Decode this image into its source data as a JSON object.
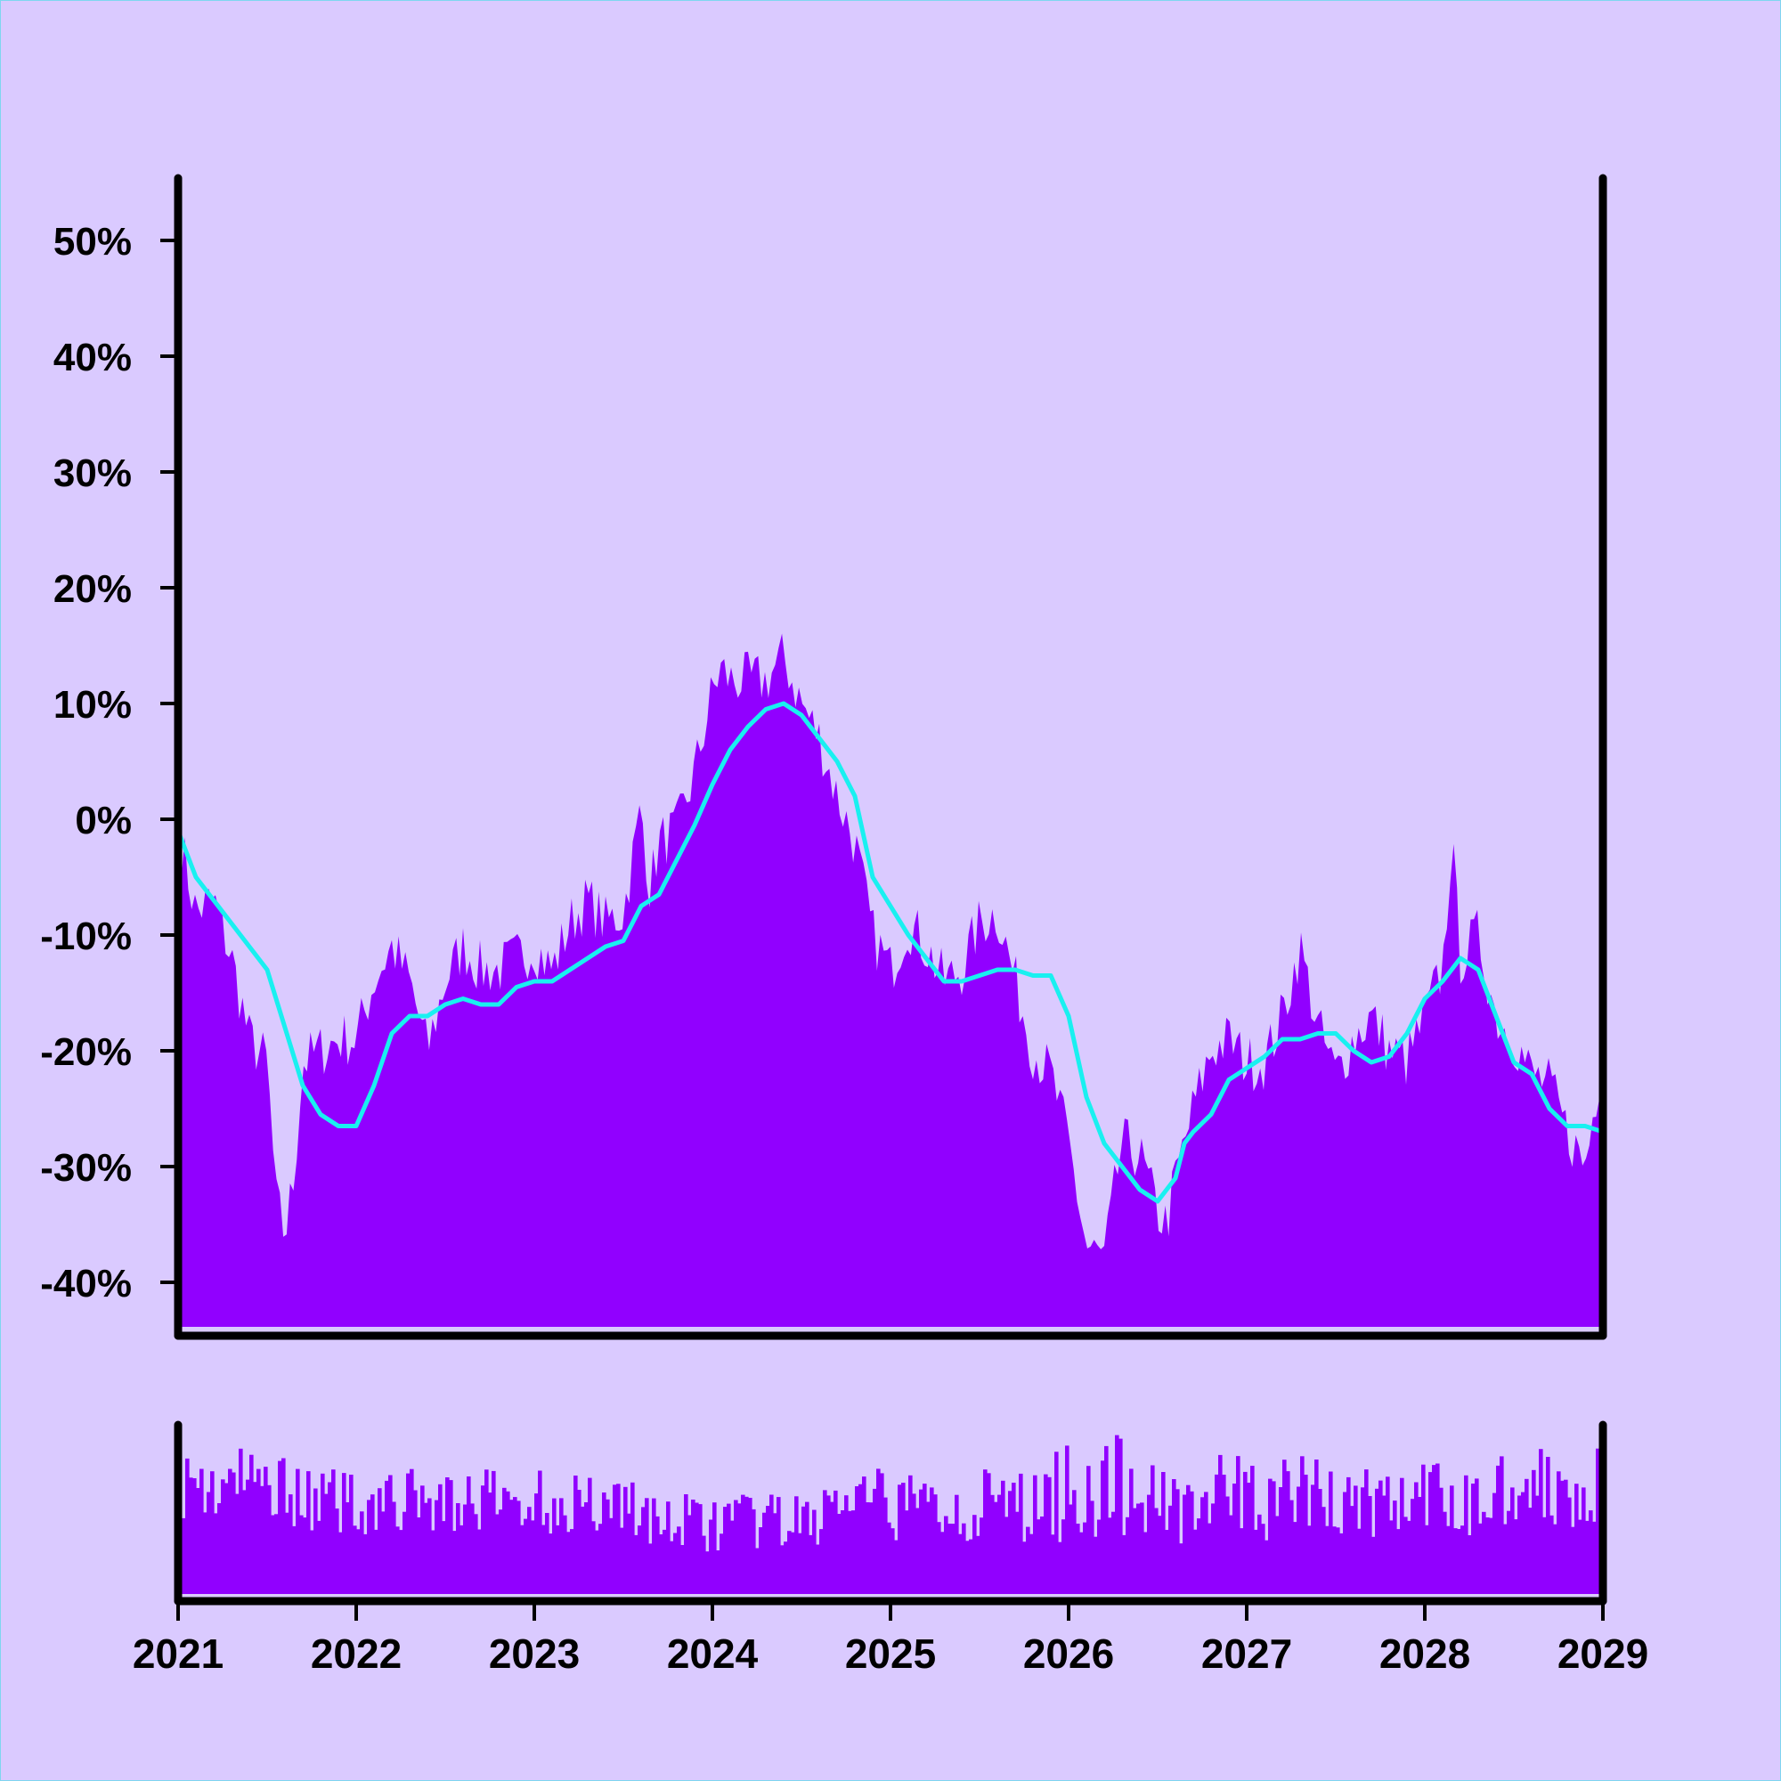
{
  "colors": {
    "background": "#dacaff",
    "area": "#9100ff",
    "trend": "#19f0f0",
    "axis": "#000000"
  },
  "chart_data": [
    {
      "type": "area",
      "title": "",
      "xlabel": "",
      "ylabel": "",
      "xlim": [
        2021.0,
        2029.0
      ],
      "ylim": [
        -44,
        55
      ],
      "y_ticks": [
        "50%",
        "40%",
        "30%",
        "20%",
        "10%",
        "0%",
        "-10%",
        "-20%",
        "-30%",
        "-40%"
      ],
      "y_tick_values": [
        50,
        40,
        30,
        20,
        10,
        0,
        -10,
        -20,
        -30,
        -40
      ],
      "grid": false,
      "legend": "none",
      "series": [
        {
          "style": "filled area",
          "x": [
            2021.0,
            2021.1,
            2021.2,
            2021.3,
            2021.4,
            2021.5,
            2021.55,
            2021.6,
            2021.65,
            2021.7,
            2021.8,
            2021.9,
            2022.0,
            2022.1,
            2022.2,
            2022.3,
            2022.4,
            2022.5,
            2022.6,
            2022.7,
            2022.8,
            2022.9,
            2023.0,
            2023.1,
            2023.2,
            2023.3,
            2023.4,
            2023.5,
            2023.6,
            2023.65,
            2023.7,
            2023.8,
            2023.9,
            2024.0,
            2024.05,
            2024.1,
            2024.2,
            2024.3,
            2024.4,
            2024.5,
            2024.6,
            2024.7,
            2024.8,
            2024.9,
            2025.0,
            2025.1,
            2025.2,
            2025.3,
            2025.4,
            2025.5,
            2025.6,
            2025.7,
            2025.8,
            2025.9,
            2026.0,
            2026.1,
            2026.2,
            2026.25,
            2026.3,
            2026.4,
            2026.5,
            2026.55,
            2026.6,
            2026.7,
            2026.8,
            2026.9,
            2027.0,
            2027.1,
            2027.2,
            2027.3,
            2027.4,
            2027.5,
            2027.6,
            2027.7,
            2027.8,
            2027.9,
            2028.0,
            2028.1,
            2028.15,
            2028.2,
            2028.3,
            2028.4,
            2028.5,
            2028.6,
            2028.7,
            2028.8,
            2028.9,
            2029.0
          ],
          "y": [
            -1,
            -8,
            -7,
            -12,
            -19,
            -21,
            -33,
            -36,
            -31,
            -21,
            -20,
            -19,
            -19,
            -14,
            -11,
            -14,
            -20,
            -14,
            -11,
            -13,
            -13,
            -12,
            -11,
            -13,
            -9,
            -7,
            -9,
            -8,
            1,
            -6,
            -2,
            -1,
            4,
            11,
            13,
            12,
            12,
            12,
            14,
            10,
            7,
            2,
            -2,
            -10,
            -13,
            -9,
            -11,
            -14,
            -13,
            -9,
            -8,
            -14,
            -20,
            -22,
            -28,
            -37,
            -38,
            -33,
            -28,
            -29,
            -34,
            -35,
            -31,
            -25,
            -20,
            -19,
            -21,
            -21,
            -17,
            -11,
            -18,
            -22,
            -19,
            -17,
            -20,
            -21,
            -17,
            -13,
            -2,
            -12,
            -10,
            -17,
            -19,
            -22,
            -23,
            -27,
            -30,
            -20
          ]
        },
        {
          "style": "smoothed line",
          "x": [
            2021.0,
            2021.1,
            2021.2,
            2021.3,
            2021.4,
            2021.5,
            2021.6,
            2021.7,
            2021.8,
            2021.9,
            2022.0,
            2022.1,
            2022.2,
            2022.3,
            2022.4,
            2022.5,
            2022.6,
            2022.7,
            2022.8,
            2022.9,
            2023.0,
            2023.1,
            2023.2,
            2023.3,
            2023.4,
            2023.5,
            2023.6,
            2023.7,
            2023.8,
            2023.9,
            2024.0,
            2024.1,
            2024.2,
            2024.3,
            2024.4,
            2024.5,
            2024.6,
            2024.7,
            2024.8,
            2024.9,
            2025.0,
            2025.1,
            2025.2,
            2025.3,
            2025.4,
            2025.5,
            2025.6,
            2025.7,
            2025.8,
            2025.9,
            2026.0,
            2026.1,
            2026.2,
            2026.3,
            2026.4,
            2026.5,
            2026.6,
            2026.65,
            2026.7,
            2026.8,
            2026.9,
            2027.0,
            2027.1,
            2027.2,
            2027.3,
            2027.4,
            2027.5,
            2027.6,
            2027.7,
            2027.8,
            2027.9,
            2028.0,
            2028.1,
            2028.2,
            2028.3,
            2028.4,
            2028.5,
            2028.6,
            2028.7,
            2028.8,
            2028.9,
            2029.0
          ],
          "y": [
            -1,
            -5,
            -7,
            -9,
            -11,
            -13,
            -18,
            -23,
            -25.5,
            -26.5,
            -26.5,
            -23,
            -18.5,
            -17,
            -17,
            -16,
            -15.5,
            -16,
            -16,
            -14.5,
            -14,
            -14,
            -13,
            -12,
            -11,
            -10.5,
            -7.5,
            -6.5,
            -3.5,
            -0.5,
            3,
            6,
            8,
            9.5,
            10,
            9,
            7,
            5,
            2,
            -5,
            -7.5,
            -10,
            -12,
            -14,
            -14,
            -13.5,
            -13,
            -13,
            -13.5,
            -13.5,
            -17,
            -24,
            -28,
            -30,
            -32,
            -33,
            -31,
            -28,
            -27,
            -25.5,
            -22.5,
            -21.5,
            -20.5,
            -19,
            -19,
            -18.5,
            -18.5,
            -20,
            -21,
            -20.5,
            -18.5,
            -15.5,
            -14,
            -12,
            -13,
            -17,
            -21,
            -22,
            -25,
            -26.5,
            -26.5,
            -27
          ]
        }
      ]
    },
    {
      "type": "bar",
      "title": "",
      "xlabel": "",
      "ylabel": "",
      "xlim": [
        2021.0,
        2029.0
      ],
      "x_ticks": [
        "2021",
        "2022",
        "2023",
        "2024",
        "2025",
        "2026",
        "2027",
        "2028",
        "2029"
      ],
      "x_tick_values": [
        2021,
        2022,
        2023,
        2024,
        2025,
        2026,
        2027,
        2028,
        2029
      ],
      "ylim": [
        0,
        1
      ],
      "grid": false,
      "legend": "none",
      "series": [
        {
          "style": "volume bars",
          "segments": [
            {
              "from": 2021.0,
              "to": 2021.7,
              "low": 0.4,
              "high": 0.9
            },
            {
              "from": 2021.7,
              "to": 2023.6,
              "low": 0.35,
              "high": 0.75
            },
            {
              "from": 2023.6,
              "to": 2024.6,
              "low": 0.25,
              "high": 0.6
            },
            {
              "from": 2024.6,
              "to": 2025.9,
              "low": 0.3,
              "high": 0.75
            },
            {
              "from": 2025.9,
              "to": 2026.4,
              "low": 0.3,
              "high": 0.95
            },
            {
              "from": 2026.4,
              "to": 2027.5,
              "low": 0.3,
              "high": 0.85
            },
            {
              "from": 2027.5,
              "to": 2028.4,
              "low": 0.3,
              "high": 0.8
            },
            {
              "from": 2028.4,
              "to": 2029.0,
              "low": 0.4,
              "high": 0.9
            }
          ],
          "bar_count": 400
        }
      ]
    }
  ]
}
